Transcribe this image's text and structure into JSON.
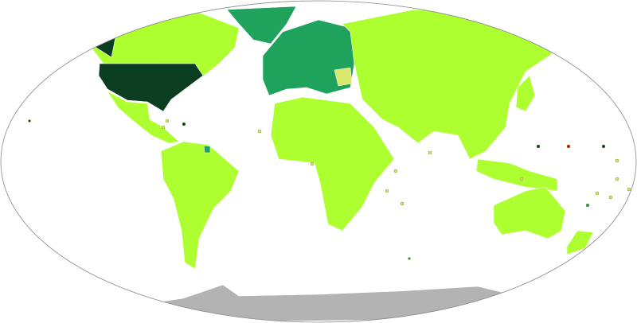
{
  "map": {
    "projection": "Robinson",
    "colors": {
      "background": "#ffffff",
      "border": "#888888",
      "level_low": "#adff2f",
      "level_mid": "#1fa35c",
      "level_high": "#0b3d20",
      "level_pale": "#d8e86a",
      "no_data": "#b3b3b3",
      "special": "#cc0000"
    },
    "regions": [
      {
        "name": "canada",
        "level": "low"
      },
      {
        "name": "alaska",
        "level": "high"
      },
      {
        "name": "united-states",
        "level": "high"
      },
      {
        "name": "mexico-central-america",
        "level": "low"
      },
      {
        "name": "greenland",
        "level": "mid"
      },
      {
        "name": "south-america",
        "level": "low"
      },
      {
        "name": "europe",
        "level": "mid"
      },
      {
        "name": "africa",
        "level": "low"
      },
      {
        "name": "asia",
        "level": "low"
      },
      {
        "name": "southeast-asia",
        "level": "low"
      },
      {
        "name": "australia",
        "level": "low"
      },
      {
        "name": "new-zealand",
        "level": "low"
      },
      {
        "name": "antarctica",
        "level": "no_data"
      }
    ]
  }
}
